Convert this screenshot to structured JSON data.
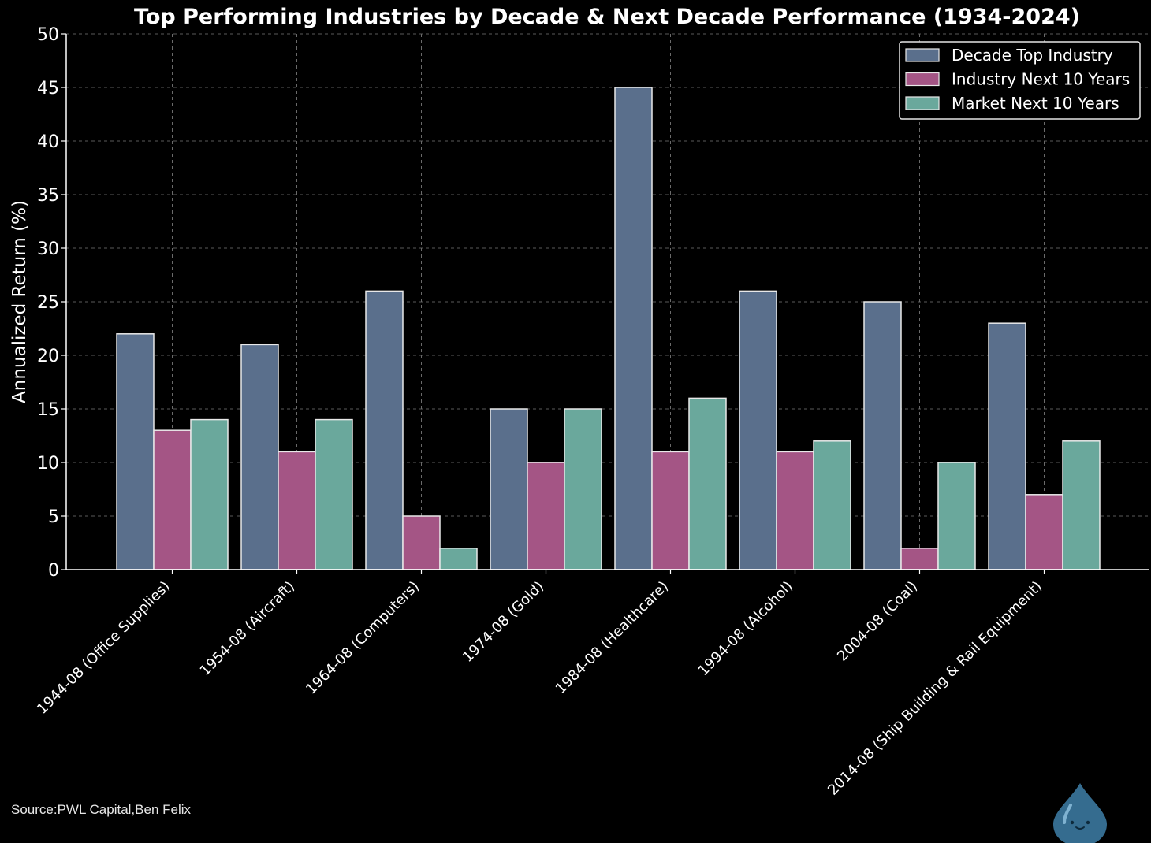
{
  "chart_data": {
    "type": "bar",
    "title": "Top Performing Industries by Decade & Next Decade Performance (1934-2024)",
    "xlabel": "",
    "ylabel": "Annualized Return (%)",
    "ylim": [
      0,
      50
    ],
    "yticks": [
      0,
      5,
      10,
      15,
      20,
      25,
      30,
      35,
      40,
      45,
      50
    ],
    "grid": true,
    "legend_position": "top-right",
    "categories": [
      "1944-08 (Office Supplies)",
      "1954-08 (Aircraft)",
      "1964-08 (Computers)",
      "1974-08 (Gold)",
      "1984-08 (Healthcare)",
      "1994-08 (Alcohol)",
      "2004-08 (Coal)",
      "2014-08 (Ship Building & Rail Equipment)"
    ],
    "series": [
      {
        "name": "Decade Top Industry",
        "color": "#5a6f8c",
        "values": [
          22,
          21,
          26,
          15,
          45,
          26,
          25,
          23
        ]
      },
      {
        "name": "Industry Next 10 Years",
        "color": "#a45585",
        "values": [
          13,
          11,
          5,
          10,
          11,
          11,
          2,
          7
        ]
      },
      {
        "name": "Market Next 10 Years",
        "color": "#6aa89c",
        "values": [
          14,
          14,
          2,
          15,
          16,
          12,
          10,
          12
        ]
      }
    ]
  },
  "footer": {
    "source": "Source:PWL Capital,Ben Felix"
  },
  "mascot_icon": "water-drop-icon"
}
